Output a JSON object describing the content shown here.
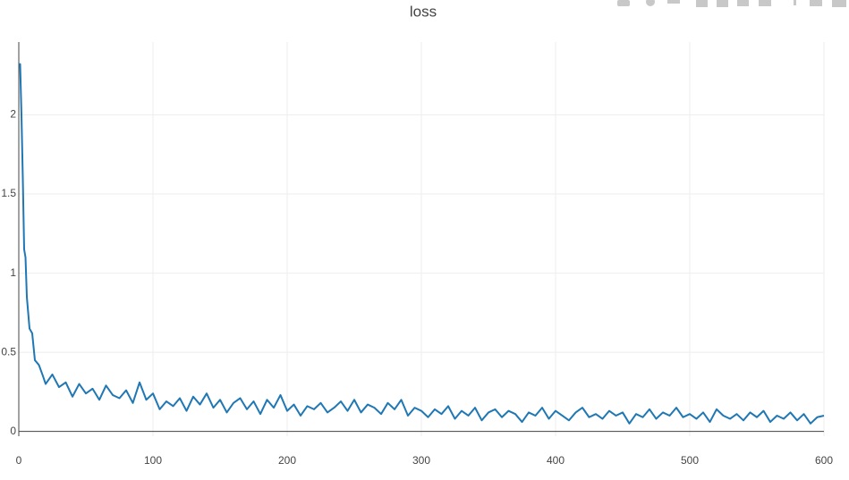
{
  "chart_data": {
    "type": "line",
    "title": "loss",
    "x": [
      0,
      1,
      2,
      3,
      4,
      5,
      6,
      7,
      8,
      10,
      12,
      15,
      18,
      20,
      25,
      30,
      35,
      40,
      45,
      50,
      55,
      60,
      65,
      70,
      75,
      80,
      85,
      90,
      95,
      100,
      105,
      110,
      115,
      120,
      125,
      130,
      135,
      140,
      145,
      150,
      155,
      160,
      165,
      170,
      175,
      180,
      185,
      190,
      195,
      200,
      205,
      210,
      215,
      220,
      225,
      230,
      235,
      240,
      245,
      250,
      255,
      260,
      265,
      270,
      275,
      280,
      285,
      290,
      295,
      300,
      305,
      310,
      315,
      320,
      325,
      330,
      335,
      340,
      345,
      350,
      355,
      360,
      365,
      370,
      375,
      380,
      385,
      390,
      395,
      400,
      405,
      410,
      415,
      420,
      425,
      430,
      435,
      440,
      445,
      450,
      455,
      460,
      465,
      470,
      475,
      480,
      485,
      490,
      495,
      500,
      505,
      510,
      515,
      520,
      525,
      530,
      535,
      540,
      545,
      550,
      555,
      560,
      565,
      570,
      575,
      580,
      585,
      590,
      595,
      600
    ],
    "series": [
      {
        "name": "loss",
        "color": "#1f77b4",
        "values": [
          2.32,
          2.32,
          2.0,
          1.6,
          1.15,
          1.1,
          0.85,
          0.75,
          0.65,
          0.62,
          0.45,
          0.42,
          0.35,
          0.3,
          0.36,
          0.28,
          0.31,
          0.22,
          0.3,
          0.24,
          0.27,
          0.2,
          0.29,
          0.23,
          0.21,
          0.26,
          0.18,
          0.31,
          0.2,
          0.24,
          0.14,
          0.19,
          0.16,
          0.21,
          0.13,
          0.22,
          0.17,
          0.24,
          0.15,
          0.2,
          0.12,
          0.18,
          0.21,
          0.14,
          0.19,
          0.11,
          0.2,
          0.15,
          0.23,
          0.13,
          0.17,
          0.1,
          0.16,
          0.14,
          0.18,
          0.12,
          0.15,
          0.19,
          0.13,
          0.2,
          0.12,
          0.17,
          0.15,
          0.11,
          0.18,
          0.14,
          0.2,
          0.1,
          0.15,
          0.13,
          0.09,
          0.14,
          0.11,
          0.16,
          0.08,
          0.13,
          0.1,
          0.15,
          0.07,
          0.12,
          0.14,
          0.09,
          0.13,
          0.11,
          0.06,
          0.12,
          0.1,
          0.15,
          0.08,
          0.13,
          0.1,
          0.07,
          0.12,
          0.15,
          0.09,
          0.11,
          0.08,
          0.13,
          0.1,
          0.12,
          0.05,
          0.11,
          0.09,
          0.14,
          0.08,
          0.12,
          0.1,
          0.15,
          0.09,
          0.11,
          0.08,
          0.12,
          0.06,
          0.14,
          0.1,
          0.08,
          0.11,
          0.07,
          0.12,
          0.09,
          0.13,
          0.06,
          0.1,
          0.08,
          0.12,
          0.07,
          0.11,
          0.05,
          0.09,
          0.1
        ]
      }
    ],
    "xlim": [
      0,
      600
    ],
    "xticks": [
      0,
      100,
      200,
      300,
      400,
      500,
      600
    ],
    "ylim": [
      -0.03,
      2.46
    ],
    "yticks": [
      0,
      0.5,
      1,
      1.5,
      2
    ],
    "grid": true
  }
}
